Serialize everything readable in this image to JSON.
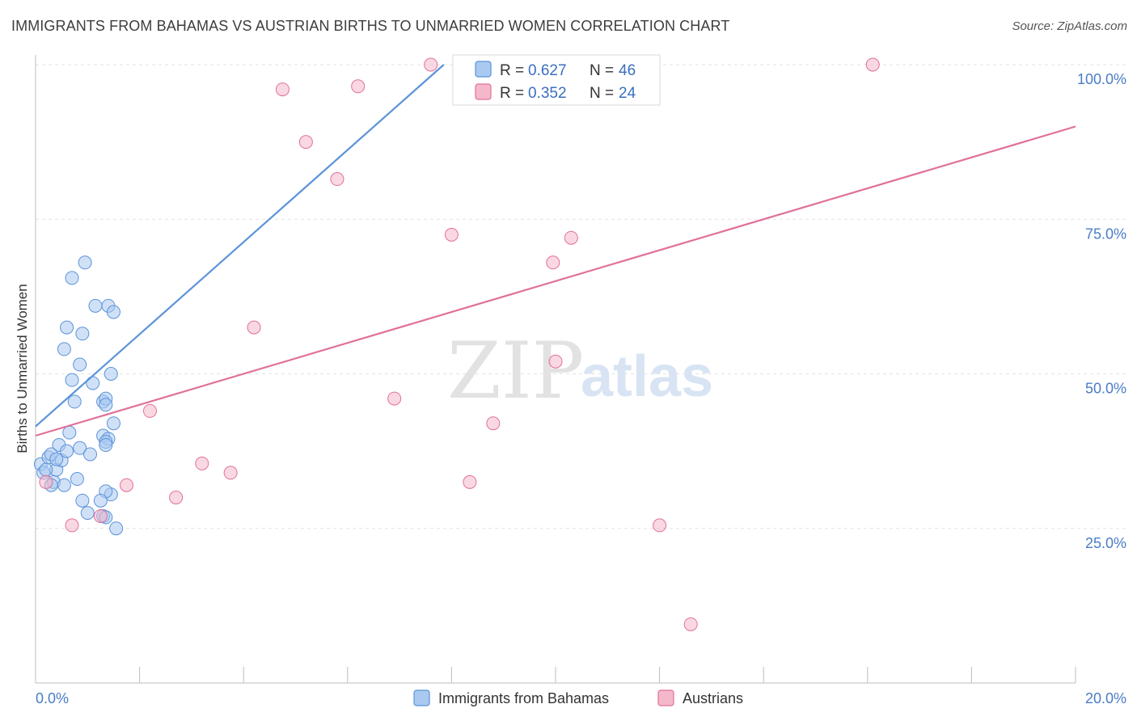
{
  "header": {
    "title": "IMMIGRANTS FROM BAHAMAS VS AUSTRIAN BIRTHS TO UNMARRIED WOMEN CORRELATION CHART",
    "source": "Source: ZipAtlas.com"
  },
  "watermark": {
    "zip": "ZIP",
    "atlas": "atlas"
  },
  "legend_top": {
    "r_label": "R = ",
    "n_label": "N = ",
    "rows": [
      {
        "r": "0.627",
        "n": "46",
        "color": "#a9c9f0"
      },
      {
        "r": "0.352",
        "n": "24",
        "color": "#f5b8cb"
      }
    ]
  },
  "chart_data": {
    "type": "scatter",
    "title": "IMMIGRANTS FROM BAHAMAS VS AUSTRIAN BIRTHS TO UNMARRIED WOMEN CORRELATION CHART",
    "xlabel": "",
    "ylabel": "Births to Unmarried Women",
    "xlim": [
      0,
      20
    ],
    "ylim": [
      0,
      100
    ],
    "x_tick_labels": [
      {
        "value": 0,
        "label": "0.0%"
      },
      {
        "value": 20,
        "label": "20.0%"
      }
    ],
    "y_tick_labels": [
      {
        "value": 25,
        "label": "25.0%"
      },
      {
        "value": 50,
        "label": "50.0%"
      },
      {
        "value": 75,
        "label": "75.0%"
      },
      {
        "value": 100,
        "label": "100.0%"
      }
    ],
    "grid": true,
    "legend_position": "bottom",
    "series": [
      {
        "name": "Immigrants from Bahamas",
        "color": "#5b93d9",
        "fill": "#a9c9f0",
        "trend": {
          "x": [
            0,
            7.85
          ],
          "y": [
            41.5,
            100
          ]
        },
        "points": [
          {
            "x": 0.1,
            "y": 35.4
          },
          {
            "x": 0.15,
            "y": 34.0
          },
          {
            "x": 0.25,
            "y": 36.5
          },
          {
            "x": 0.3,
            "y": 37.0
          },
          {
            "x": 0.35,
            "y": 32.5
          },
          {
            "x": 0.4,
            "y": 34.5
          },
          {
            "x": 0.45,
            "y": 38.5
          },
          {
            "x": 0.5,
            "y": 36.0
          },
          {
            "x": 0.4,
            "y": 36.2
          },
          {
            "x": 0.55,
            "y": 54.0
          },
          {
            "x": 0.6,
            "y": 57.5
          },
          {
            "x": 0.65,
            "y": 40.5
          },
          {
            "x": 0.7,
            "y": 65.5
          },
          {
            "x": 0.6,
            "y": 37.5
          },
          {
            "x": 0.85,
            "y": 38.0
          },
          {
            "x": 0.9,
            "y": 56.5
          },
          {
            "x": 0.85,
            "y": 51.5
          },
          {
            "x": 0.95,
            "y": 68.0
          },
          {
            "x": 0.7,
            "y": 49.0
          },
          {
            "x": 0.75,
            "y": 45.5
          },
          {
            "x": 0.9,
            "y": 29.5
          },
          {
            "x": 1.0,
            "y": 27.5
          },
          {
            "x": 1.1,
            "y": 48.5
          },
          {
            "x": 1.15,
            "y": 61.0
          },
          {
            "x": 1.05,
            "y": 37.0
          },
          {
            "x": 1.3,
            "y": 40.0
          },
          {
            "x": 1.3,
            "y": 45.5
          },
          {
            "x": 1.4,
            "y": 61.0
          },
          {
            "x": 1.45,
            "y": 50.0
          },
          {
            "x": 1.5,
            "y": 60.0
          },
          {
            "x": 1.4,
            "y": 39.5
          },
          {
            "x": 1.35,
            "y": 46.0
          },
          {
            "x": 1.35,
            "y": 45.0
          },
          {
            "x": 1.35,
            "y": 39.0
          },
          {
            "x": 1.5,
            "y": 42.0
          },
          {
            "x": 1.35,
            "y": 38.5
          },
          {
            "x": 1.45,
            "y": 30.5
          },
          {
            "x": 1.35,
            "y": 31.0
          },
          {
            "x": 1.25,
            "y": 29.5
          },
          {
            "x": 1.3,
            "y": 27.0
          },
          {
            "x": 1.35,
            "y": 26.8
          },
          {
            "x": 0.8,
            "y": 33.0
          },
          {
            "x": 0.55,
            "y": 32.0
          },
          {
            "x": 0.2,
            "y": 34.5
          },
          {
            "x": 0.3,
            "y": 32.0
          },
          {
            "x": 1.55,
            "y": 25.0
          }
        ]
      },
      {
        "name": "Austrians",
        "color": "#e0709a",
        "fill": "#f5b8cb",
        "trend": {
          "x": [
            0,
            20
          ],
          "y": [
            40.0,
            90.0
          ]
        },
        "points": [
          {
            "x": 0.2,
            "y": 32.5
          },
          {
            "x": 0.7,
            "y": 25.5
          },
          {
            "x": 1.25,
            "y": 27.0
          },
          {
            "x": 1.75,
            "y": 32.0
          },
          {
            "x": 2.2,
            "y": 44.0
          },
          {
            "x": 2.7,
            "y": 30.0
          },
          {
            "x": 3.2,
            "y": 35.5
          },
          {
            "x": 3.75,
            "y": 34.0
          },
          {
            "x": 4.2,
            "y": 57.5
          },
          {
            "x": 4.75,
            "y": 96.0
          },
          {
            "x": 5.2,
            "y": 87.5
          },
          {
            "x": 5.8,
            "y": 81.5
          },
          {
            "x": 6.2,
            "y": 96.5
          },
          {
            "x": 6.9,
            "y": 46.0
          },
          {
            "x": 7.6,
            "y": 100.0
          },
          {
            "x": 8.0,
            "y": 72.5
          },
          {
            "x": 8.35,
            "y": 32.5
          },
          {
            "x": 8.8,
            "y": 42.0
          },
          {
            "x": 9.95,
            "y": 68.0
          },
          {
            "x": 10.3,
            "y": 72.0
          },
          {
            "x": 12.0,
            "y": 25.5
          },
          {
            "x": 12.6,
            "y": 9.5
          },
          {
            "x": 16.1,
            "y": 100.0
          },
          {
            "x": 10.0,
            "y": 52.0
          }
        ]
      }
    ]
  }
}
